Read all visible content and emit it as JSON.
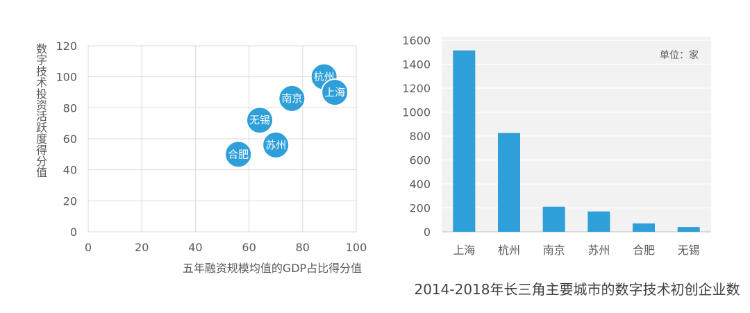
{
  "colors": {
    "accent": "#2E9FD8",
    "grid": "#D9D9D9",
    "bar_panel_bg": "#F2F2F2",
    "text": "#595959"
  },
  "chart_data": [
    {
      "type": "scatter",
      "title": "",
      "xlabel": "五年融资规模均值的GDP占比得分值",
      "ylabel": "数字技术投资活跃度得分值",
      "xlim": [
        0,
        100
      ],
      "ylim": [
        0,
        120
      ],
      "xticks": [
        "0",
        "20",
        "40",
        "60",
        "80",
        "100"
      ],
      "yticks": [
        "0",
        "20",
        "40",
        "60",
        "80",
        "100",
        "120"
      ],
      "grid": true,
      "points": [
        {
          "label": "杭州",
          "x": 88,
          "y": 100
        },
        {
          "label": "上海",
          "x": 92,
          "y": 90
        },
        {
          "label": "南京",
          "x": 76,
          "y": 86
        },
        {
          "label": "无锡",
          "x": 64,
          "y": 72
        },
        {
          "label": "苏州",
          "x": 70,
          "y": 56
        },
        {
          "label": "合肥",
          "x": 56,
          "y": 50
        }
      ]
    },
    {
      "type": "bar",
      "title": "2014-2018年长三角主要城市的数字技术初创企业数",
      "annotation": "单位：家",
      "ylim": [
        0,
        1600
      ],
      "yticks": [
        "0",
        "200",
        "400",
        "600",
        "800",
        "1000",
        "1200",
        "1400",
        "1600"
      ],
      "grid": true,
      "categories": [
        "上海",
        "杭州",
        "南京",
        "苏州",
        "合肥",
        "无锡"
      ],
      "values": [
        1515,
        825,
        210,
        170,
        70,
        40
      ]
    }
  ]
}
